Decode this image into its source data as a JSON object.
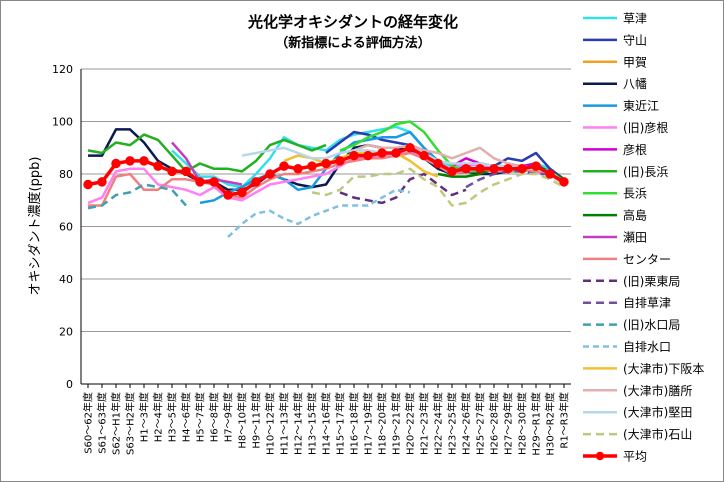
{
  "chart_data": {
    "type": "line",
    "title": "光化学オキシダントの経年変化",
    "subtitle": "（新指標による評価方法）",
    "ylabel": "オキシダント濃度(ppb)",
    "xlabel": "",
    "ylim": [
      0,
      120
    ],
    "yticks": [
      0,
      20,
      40,
      60,
      80,
      100,
      120
    ],
    "grid": true,
    "legend_position": "right",
    "categories": [
      "S60～62年度",
      "S61～63年度",
      "S62～H1年度",
      "S63～H2年度",
      "H1～3年度",
      "H2～4年度",
      "H3～5年度",
      "H4～6年度",
      "H5～7年度",
      "H6～8年度",
      "H7～9年度",
      "H8～10年度",
      "H9～11年度",
      "H10～12年度",
      "H11～13年度",
      "H12～14年度",
      "H13～15年度",
      "H14～16年度",
      "H15～17年度",
      "H16～18年度",
      "H17～19年度",
      "H18～20年度",
      "H19～21年度",
      "H20～22年度",
      "H21～23年度",
      "H22～24年度",
      "H23～25年度",
      "H24～26年度",
      "H25～27年度",
      "H26～28年度",
      "H27～29年度",
      "H28～30年度",
      "H29～R1年度",
      "H30～R2年度",
      "R1～R3年度"
    ],
    "series": [
      {
        "name": "草津",
        "color": "#33E0E8",
        "dash": "",
        "values": [
          null,
          null,
          null,
          null,
          null,
          null,
          89,
          84,
          79,
          79,
          76,
          75,
          80,
          86,
          94,
          91,
          90,
          89,
          93,
          95,
          96,
          97,
          98,
          96,
          90,
          85,
          83,
          84,
          83,
          82,
          82,
          83,
          84,
          82,
          78
        ]
      },
      {
        "name": "守山",
        "color": "#2B3BB0",
        "dash": "",
        "values": [
          null,
          null,
          null,
          null,
          null,
          null,
          null,
          null,
          null,
          null,
          null,
          null,
          null,
          null,
          null,
          null,
          null,
          88,
          92,
          96,
          95,
          93,
          92,
          91,
          89,
          84,
          81,
          83,
          84,
          83,
          86,
          85,
          88,
          82,
          78
        ]
      },
      {
        "name": "甲賀",
        "color": "#F0A020",
        "dash": "",
        "values": [
          null,
          null,
          null,
          null,
          null,
          null,
          null,
          null,
          null,
          null,
          null,
          null,
          null,
          null,
          null,
          null,
          null,
          null,
          null,
          null,
          null,
          null,
          null,
          null,
          null,
          null,
          null,
          null,
          null,
          null,
          null,
          null,
          null,
          null,
          null
        ]
      },
      {
        "name": "八幡",
        "color": "#0A1A50",
        "dash": "",
        "values": [
          87,
          87,
          97,
          97,
          92,
          85,
          82,
          80,
          77,
          77,
          74,
          74,
          76,
          80,
          78,
          76,
          75,
          76,
          84,
          90,
          91,
          90,
          90,
          89,
          86,
          82,
          80,
          81,
          80,
          80,
          81,
          82,
          82,
          81,
          77
        ]
      },
      {
        "name": "東近江",
        "color": "#1A9AE0",
        "dash": "",
        "values": [
          null,
          null,
          null,
          null,
          null,
          null,
          null,
          null,
          69,
          70,
          73,
          75,
          78,
          80,
          78,
          74,
          75,
          82,
          88,
          92,
          93,
          94,
          94,
          96,
          90,
          85,
          80,
          81,
          82,
          82,
          82,
          83,
          83,
          80,
          77
        ]
      },
      {
        "name": "(旧)彦根",
        "color": "#FF80F0",
        "dash": "",
        "values": [
          69,
          71,
          81,
          82,
          82,
          76,
          75,
          74,
          72,
          75,
          71,
          70,
          73,
          76,
          77,
          78,
          79,
          80,
          83,
          86,
          86,
          87,
          88,
          88,
          87,
          84,
          82,
          84,
          83,
          82,
          81,
          82,
          82,
          81,
          76
        ]
      },
      {
        "name": "彦根",
        "color": "#D000D0",
        "dash": "",
        "values": [
          null,
          null,
          null,
          null,
          null,
          null,
          null,
          null,
          null,
          null,
          null,
          null,
          null,
          null,
          null,
          null,
          null,
          null,
          null,
          null,
          null,
          null,
          null,
          null,
          null,
          null,
          83,
          86,
          84,
          83,
          83,
          83,
          84,
          80,
          77
        ]
      },
      {
        "name": "(旧)長浜",
        "color": "#20B020",
        "dash": "",
        "values": [
          89,
          88,
          92,
          91,
          95,
          93,
          87,
          81,
          84,
          82,
          82,
          81,
          85,
          91,
          93,
          91,
          89,
          91,
          null,
          null,
          null,
          null,
          null,
          null,
          null,
          null,
          null,
          null,
          null,
          null,
          null,
          null,
          null,
          null,
          null
        ]
      },
      {
        "name": "長浜",
        "color": "#30E030",
        "dash": "",
        "values": [
          null,
          null,
          null,
          null,
          null,
          null,
          null,
          null,
          null,
          null,
          null,
          null,
          null,
          null,
          null,
          null,
          null,
          null,
          89,
          91,
          94,
          96,
          99,
          100,
          96,
          89,
          83,
          81,
          81,
          82,
          81,
          81,
          82,
          80,
          77
        ]
      },
      {
        "name": "高島",
        "color": "#008000",
        "dash": "",
        "values": [
          null,
          null,
          null,
          null,
          null,
          null,
          null,
          null,
          null,
          null,
          null,
          null,
          null,
          null,
          null,
          null,
          null,
          null,
          null,
          null,
          null,
          null,
          null,
          null,
          null,
          80,
          79,
          79,
          80,
          82,
          82,
          82,
          83,
          81,
          78
        ]
      },
      {
        "name": "瀬田",
        "color": "#C040C0",
        "dash": "",
        "values": [
          null,
          null,
          null,
          null,
          null,
          null,
          92,
          86,
          77,
          78,
          77,
          76,
          null,
          null,
          null,
          null,
          null,
          null,
          null,
          null,
          null,
          null,
          null,
          null,
          null,
          null,
          null,
          null,
          null,
          null,
          null,
          null,
          null,
          null,
          null
        ]
      },
      {
        "name": "センター",
        "color": "#F08080",
        "dash": "",
        "values": [
          68,
          68,
          79,
          80,
          74,
          74,
          78,
          78,
          77,
          76,
          72,
          71,
          75,
          78,
          80,
          80,
          81,
          82,
          84,
          85,
          86,
          86,
          87,
          88,
          86,
          83,
          80,
          81,
          82,
          81,
          81,
          82,
          81,
          80,
          76
        ]
      },
      {
        "name": "(旧)栗東局",
        "color": "#603080",
        "dash": "8,5",
        "values": [
          null,
          null,
          null,
          null,
          null,
          null,
          null,
          null,
          null,
          null,
          null,
          null,
          null,
          null,
          null,
          null,
          null,
          null,
          73,
          71,
          70,
          69,
          71,
          78,
          80,
          76,
          72,
          74,
          null,
          null,
          null,
          null,
          null,
          null,
          null
        ]
      },
      {
        "name": "自排草津",
        "color": "#7050A0",
        "dash": "8,5",
        "values": [
          null,
          null,
          null,
          null,
          null,
          null,
          null,
          null,
          null,
          null,
          null,
          null,
          null,
          null,
          null,
          null,
          null,
          null,
          null,
          null,
          null,
          null,
          null,
          null,
          null,
          null,
          null,
          75,
          78,
          80,
          81,
          81,
          80,
          80,
          77
        ]
      },
      {
        "name": "(旧)水口局",
        "color": "#40A0B0",
        "dash": "8,5",
        "values": [
          67,
          68,
          72,
          73,
          76,
          75,
          74,
          68,
          null,
          null,
          null,
          null,
          null,
          null,
          null,
          null,
          null,
          null,
          null,
          null,
          null,
          null,
          null,
          null,
          null,
          null,
          null,
          null,
          null,
          null,
          null,
          null,
          null,
          null,
          null
        ]
      },
      {
        "name": "自排水口",
        "color": "#80C0E0",
        "dash": "6,4",
        "values": [
          null,
          null,
          null,
          null,
          null,
          null,
          null,
          null,
          null,
          null,
          56,
          61,
          65,
          66,
          63,
          61,
          64,
          66,
          68,
          68,
          68,
          71,
          74,
          73,
          null,
          null,
          null,
          null,
          null,
          null,
          null,
          null,
          null,
          null,
          null
        ]
      },
      {
        "name": "(大津市)下阪本",
        "color": "#F0C030",
        "dash": "",
        "values": [
          null,
          null,
          null,
          null,
          null,
          null,
          null,
          null,
          null,
          null,
          null,
          null,
          null,
          null,
          85,
          87,
          86,
          84,
          86,
          88,
          88,
          88,
          88,
          85,
          81,
          79,
          null,
          null,
          null,
          null,
          null,
          null,
          null,
          null,
          null
        ]
      },
      {
        "name": "(大津市)膳所",
        "color": "#E0B0B0",
        "dash": "",
        "values": [
          null,
          null,
          null,
          null,
          null,
          null,
          null,
          null,
          null,
          null,
          null,
          null,
          null,
          null,
          null,
          null,
          null,
          null,
          null,
          89,
          91,
          90,
          90,
          91,
          89,
          88,
          86,
          88,
          90,
          86,
          84,
          83,
          82,
          80,
          77
        ]
      },
      {
        "name": "(大津市)堅田",
        "color": "#B8D8E8",
        "dash": "",
        "values": [
          null,
          null,
          null,
          null,
          null,
          null,
          null,
          null,
          null,
          null,
          null,
          87,
          88,
          89,
          90,
          88,
          86,
          86,
          88,
          89,
          89,
          88,
          88,
          90,
          88,
          85,
          84,
          84,
          84,
          83,
          83,
          82,
          82,
          81,
          77
        ]
      },
      {
        "name": "(大津市)石山",
        "color": "#C0C880",
        "dash": "8,5",
        "values": [
          null,
          null,
          null,
          null,
          null,
          null,
          null,
          null,
          null,
          null,
          null,
          null,
          null,
          null,
          null,
          null,
          73,
          72,
          74,
          79,
          79,
          80,
          80,
          82,
          78,
          75,
          68,
          69,
          73,
          76,
          78,
          80,
          80,
          78,
          75
        ]
      },
      {
        "name": "平均",
        "color": "#FF0000",
        "dash": "",
        "marker": true,
        "values": [
          76,
          77,
          84,
          85,
          85,
          83,
          81,
          81,
          77,
          77,
          72,
          73,
          77,
          80,
          83,
          82,
          83,
          84,
          85,
          87,
          87,
          88,
          88,
          90,
          87,
          84,
          81,
          82,
          82,
          82,
          82,
          82,
          83,
          80,
          77
        ]
      }
    ]
  }
}
